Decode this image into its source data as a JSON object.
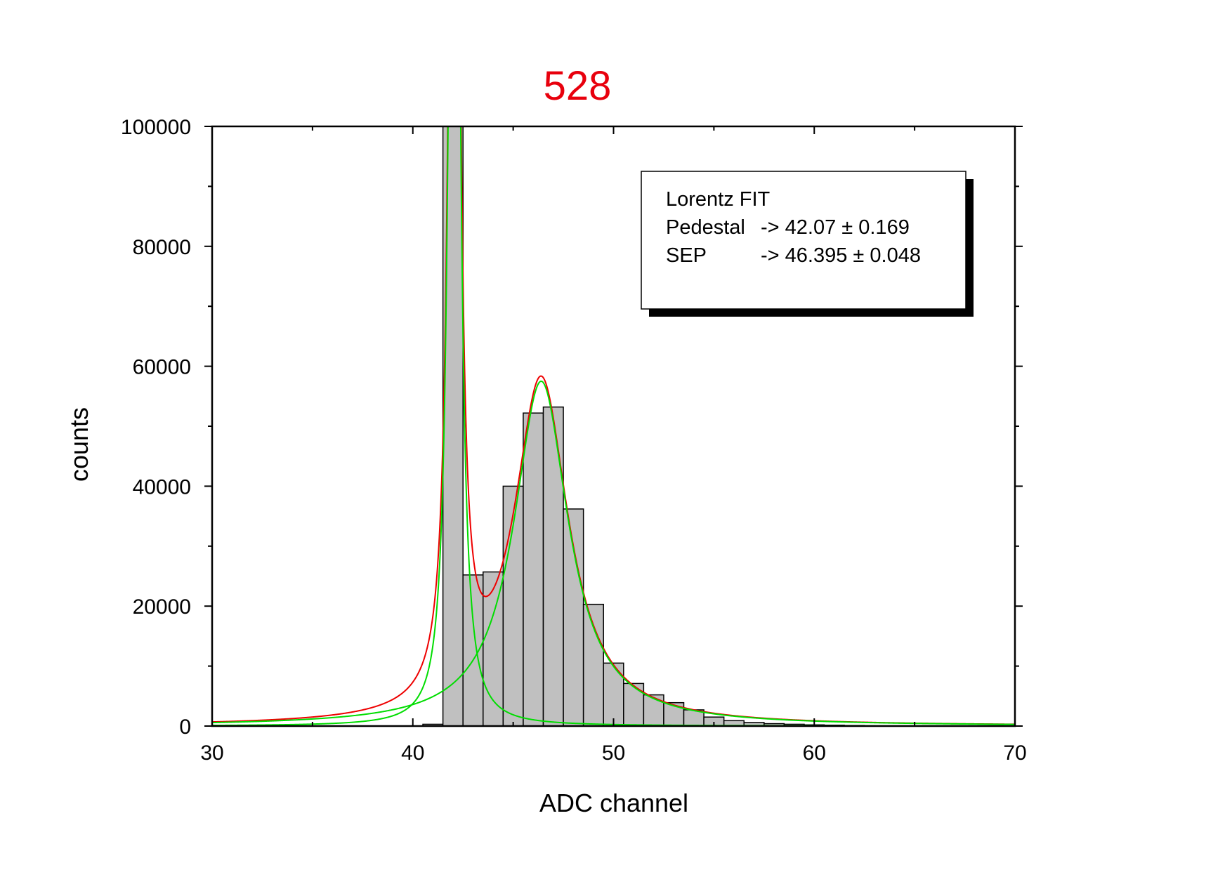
{
  "chart_data": {
    "type": "bar",
    "title": "528",
    "title_color": "#e8000d",
    "xlabel": "ADC channel",
    "ylabel": "counts",
    "xlim": [
      30,
      70
    ],
    "ylim": [
      0,
      100000
    ],
    "x_ticks": [
      "30",
      "40",
      "50",
      "60",
      "70"
    ],
    "y_ticks": [
      "0",
      "20000",
      "40000",
      "60000",
      "80000",
      "100000"
    ],
    "bar_color": "#c0c0c0",
    "bar_width": 1,
    "bars": [
      {
        "x": 41,
        "y": 300
      },
      {
        "x": 42,
        "y": 100000
      },
      {
        "x": 43,
        "y": 25200
      },
      {
        "x": 44,
        "y": 25700
      },
      {
        "x": 45,
        "y": 40000
      },
      {
        "x": 46,
        "y": 52200
      },
      {
        "x": 47,
        "y": 53200
      },
      {
        "x": 48,
        "y": 36200
      },
      {
        "x": 49,
        "y": 20300
      },
      {
        "x": 50,
        "y": 10500
      },
      {
        "x": 51,
        "y": 7100
      },
      {
        "x": 52,
        "y": 5200
      },
      {
        "x": 53,
        "y": 3900
      },
      {
        "x": 54,
        "y": 2700
      },
      {
        "x": 55,
        "y": 1500
      },
      {
        "x": 56,
        "y": 900
      },
      {
        "x": 57,
        "y": 600
      },
      {
        "x": 58,
        "y": 400
      },
      {
        "x": 59,
        "y": 300
      },
      {
        "x": 60,
        "y": 200
      },
      {
        "x": 61,
        "y": 150
      },
      {
        "x": 62,
        "y": 100
      }
    ],
    "fit_curves": [
      {
        "color": "#00dd00",
        "center": 42.07,
        "width": 0.5,
        "amplitude": 260000
      },
      {
        "color": "#00dd00",
        "center": 46.395,
        "width": 3.3,
        "amplitude": 57500
      },
      {
        "color": "#ee0000",
        "sum_of": [
          0,
          1
        ]
      }
    ],
    "legend": {
      "placement": "top-right",
      "lines": [
        "Lorentz FIT",
        "Pedestal -> 42.07 ± 0.169",
        "SEP -> 46.395 ± 0.048"
      ],
      "rows": [
        {
          "name": "Lorentz FIT",
          "value": ""
        },
        {
          "name": "Pedestal",
          "value": "-> 42.07 ± 0.169"
        },
        {
          "name": "SEP",
          "value": "-> 46.395 ± 0.048"
        }
      ]
    }
  }
}
